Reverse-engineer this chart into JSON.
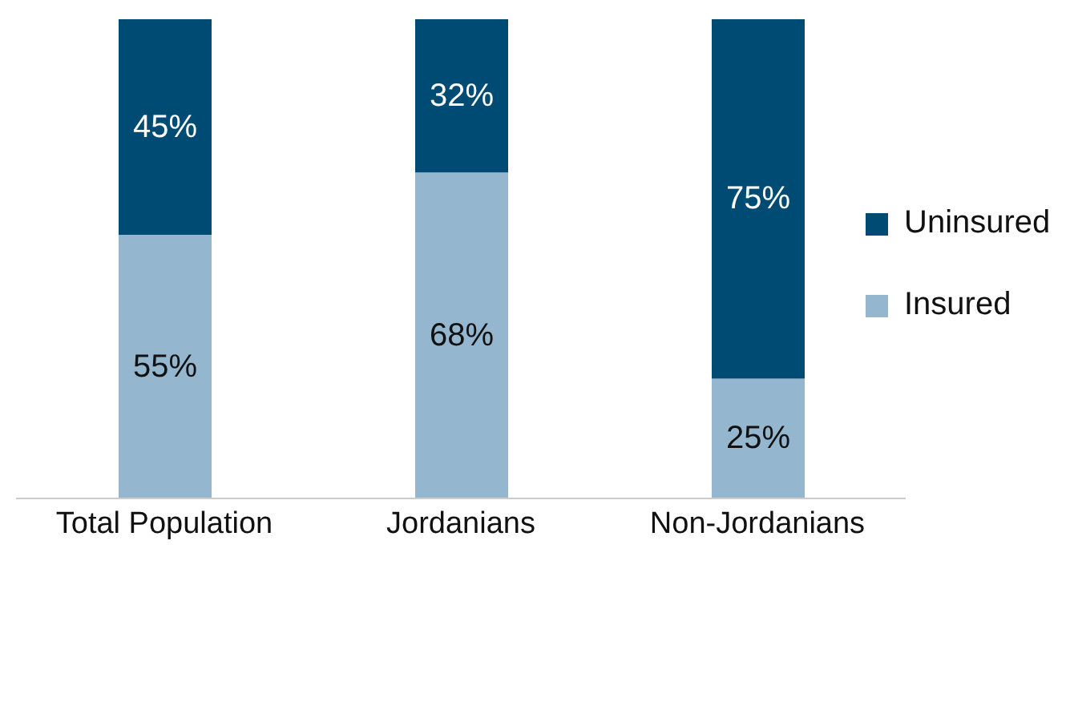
{
  "chart_data": {
    "type": "bar",
    "stacked": true,
    "categories": [
      "Total Population",
      "Jordanians",
      "Non-Jordanians"
    ],
    "series": [
      {
        "name": "Insured",
        "color": "#94b6cf",
        "values": [
          55,
          68,
          25
        ],
        "value_labels": [
          "55%",
          "68%",
          "25%"
        ]
      },
      {
        "name": "Uninsured",
        "color": "#004b73",
        "values": [
          45,
          32,
          75
        ],
        "value_labels": [
          "45%",
          "32%",
          "75%"
        ]
      }
    ],
    "legend": "right",
    "grid": false
  }
}
